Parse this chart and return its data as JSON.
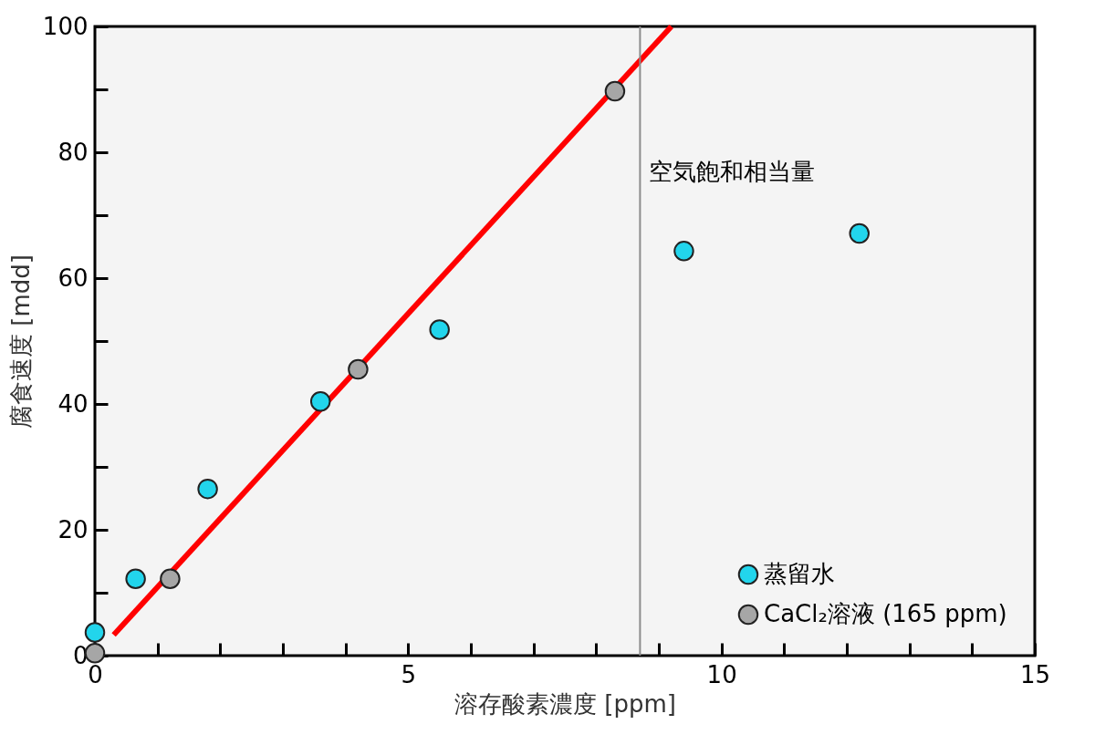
{
  "chart_data": {
    "type": "scatter",
    "xlabel": "溶存酸素濃度 [ppm]",
    "ylabel": "腐食速度 [mdd]",
    "xlim": [
      0,
      15
    ],
    "ylim": [
      0,
      100
    ],
    "xticks": [
      0,
      {
        "value": 1,
        "label": null
      },
      {
        "value": 2,
        "label": null
      },
      {
        "value": 3,
        "label": null
      },
      {
        "value": 4,
        "label": null
      },
      5,
      {
        "value": 6,
        "label": null
      },
      {
        "value": 7,
        "label": null
      },
      {
        "value": 8,
        "label": null
      },
      {
        "value": 9,
        "label": null
      },
      10,
      {
        "value": 11,
        "label": null
      },
      {
        "value": 12,
        "label": null
      },
      {
        "value": 13,
        "label": null
      },
      {
        "value": 14,
        "label": null
      },
      15
    ],
    "yticks": [
      0,
      {
        "value": 10,
        "label": null
      },
      20,
      {
        "value": 30,
        "label": null
      },
      40,
      {
        "value": 50,
        "label": null
      },
      60,
      {
        "value": 70,
        "label": null
      },
      80,
      {
        "value": 90,
        "label": null
      },
      100
    ],
    "grid": false,
    "legend": "bottom right",
    "marker": "circle",
    "series": [
      {
        "name": "蒸留水",
        "color": "#22d5ec",
        "x": [
          0,
          0.65,
          1.8,
          3.6,
          5.5,
          9.4,
          12.2
        ],
        "values": [
          3.7,
          12.2,
          26.5,
          40.4,
          51.8,
          64.3,
          67.1
        ]
      },
      {
        "name": "CaCl₂溶液 (165 ppm)",
        "color": "#a6a6a6",
        "x": [
          0,
          1.2,
          4.2,
          8.3
        ],
        "values": [
          0.4,
          12.2,
          45.5,
          89.7
        ]
      },
      {
        "type": "line",
        "marker": "none",
        "color": "#ff0000",
        "x": [
          0.3,
          9.2
        ],
        "values": [
          3.3,
          100
        ]
      }
    ],
    "ref_lines": [
      {
        "axis": "x",
        "value": 8.7,
        "label": "空気飽和相当量",
        "color": "#8c8c8c"
      }
    ]
  }
}
